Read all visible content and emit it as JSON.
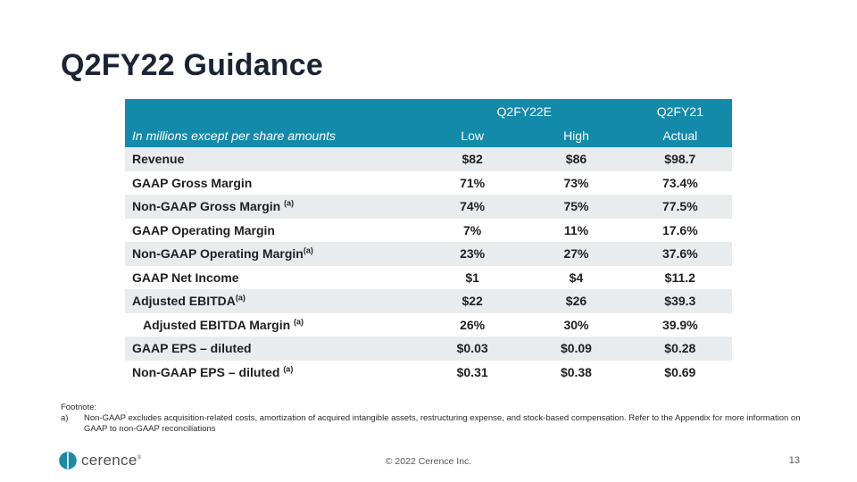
{
  "title": "Q2FY22 Guidance",
  "table": {
    "group_headers": {
      "estimate": "Q2FY22E",
      "prior": "Q2FY21"
    },
    "subheaders": {
      "label": "In millions except per share amounts",
      "low": "Low",
      "high": "High",
      "actual": "Actual"
    },
    "rows": [
      {
        "label": "Revenue",
        "sup": "",
        "low": "$82",
        "high": "$86",
        "actual": "$98.7"
      },
      {
        "label": "GAAP Gross Margin",
        "sup": "",
        "low": "71%",
        "high": "73%",
        "actual": "73.4%"
      },
      {
        "label": "Non-GAAP Gross Margin ",
        "sup": "(a)",
        "low": "74%",
        "high": "75%",
        "actual": "77.5%"
      },
      {
        "label": "GAAP Operating Margin",
        "sup": "",
        "low": "7%",
        "high": "11%",
        "actual": "17.6%"
      },
      {
        "label": "Non-GAAP Operating Margin",
        "sup": "(a)",
        "low": "23%",
        "high": "27%",
        "actual": "37.6%"
      },
      {
        "label": "GAAP Net Income",
        "sup": "",
        "low": "$1",
        "high": "$4",
        "actual": "$11.2"
      },
      {
        "label": "Adjusted EBITDA",
        "sup": "(a)",
        "low": "$22",
        "high": "$26",
        "actual": "$39.3"
      },
      {
        "label": "Adjusted EBITDA Margin ",
        "sup": "(a)",
        "low": "26%",
        "high": "30%",
        "actual": "39.9%"
      },
      {
        "label": "GAAP EPS – diluted",
        "sup": "",
        "low": "$0.03",
        "high": "$0.09",
        "actual": "$0.28"
      },
      {
        "label": "Non-GAAP EPS – diluted ",
        "sup": "(a)",
        "low": "$0.31",
        "high": "$0.38",
        "actual": "$0.69"
      }
    ]
  },
  "footnote": {
    "heading": "Footnote:",
    "items": [
      {
        "marker": "a)",
        "text": "Non-GAAP excludes acquisition-related costs, amortization of acquired intangible assets, restructuring expense, and stock-based compensation.  Refer to the Appendix for more information on GAAP to non-GAAP reconciliations"
      }
    ]
  },
  "logo": {
    "wordmark": "cerence",
    "mark": "®",
    "icon": "cerence-logo-icon"
  },
  "copyright": "© 2022 Cerence Inc.",
  "page_number": "13",
  "colors": {
    "header_bg": "#138aaa",
    "band": "#e9ecef",
    "title": "#1c2333",
    "logo": "#1a8aa8"
  }
}
